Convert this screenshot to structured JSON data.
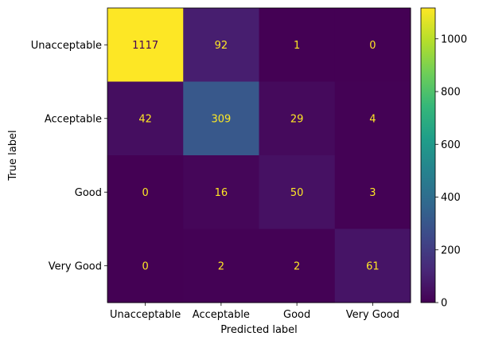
{
  "chart_data": {
    "type": "heatmap",
    "title": "",
    "xlabel": "Predicted label",
    "ylabel": "True label",
    "x_categories": [
      "Unacceptable",
      "Acceptable",
      "Good",
      "Very Good"
    ],
    "y_categories": [
      "Unacceptable",
      "Acceptable",
      "Good",
      "Very Good"
    ],
    "values": [
      [
        1117,
        92,
        1,
        0
      ],
      [
        42,
        309,
        29,
        4
      ],
      [
        0,
        16,
        50,
        3
      ],
      [
        0,
        2,
        2,
        61
      ]
    ],
    "colormap": "viridis",
    "vmin": 0,
    "vmax": 1117,
    "colorbar_ticks": [
      0,
      200,
      400,
      600,
      800,
      1000
    ],
    "text_color_on_dark": "#fde725",
    "text_color_on_light": "#440154",
    "grid": false
  }
}
